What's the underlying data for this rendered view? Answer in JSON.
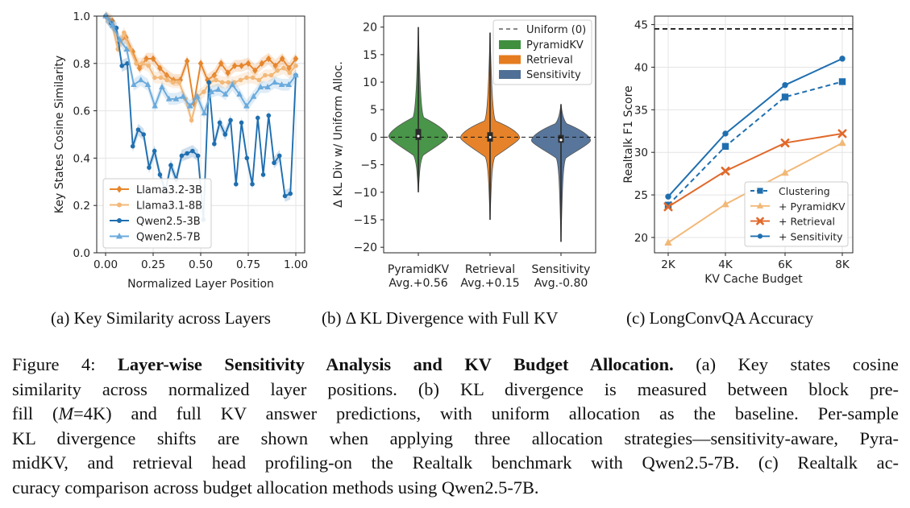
{
  "chart_data": [
    {
      "type": "line",
      "xlabel": "Normalized Layer Position",
      "ylabel": "Key States Cosine Similarity",
      "xlim": [
        0,
        1
      ],
      "ylim": [
        0,
        1
      ],
      "xticks": [
        "0.00",
        "0.25",
        "0.50",
        "0.75",
        "1.00"
      ],
      "yticks": [
        "0.0",
        "0.2",
        "0.4",
        "0.6",
        "0.8",
        "1.0"
      ],
      "grid": true,
      "legend_position": "lower-left",
      "series": [
        {
          "name": "Llama3.2-3B",
          "color": "#e6862c",
          "marker": "diamond",
          "x": [
            0,
            0.0357,
            0.0714,
            0.1071,
            0.1429,
            0.1786,
            0.2143,
            0.25,
            0.2857,
            0.3214,
            0.3571,
            0.3929,
            0.4286,
            0.4643,
            0.5,
            0.5357,
            0.5714,
            0.6071,
            0.6429,
            0.6786,
            0.7143,
            0.75,
            0.7857,
            0.8214,
            0.8571,
            0.8929,
            0.9286,
            0.9643,
            1.0
          ],
          "y": [
            1.0,
            0.98,
            0.89,
            0.91,
            0.85,
            0.78,
            0.82,
            0.82,
            0.78,
            0.75,
            0.73,
            0.73,
            0.81,
            0.63,
            0.8,
            0.73,
            0.75,
            0.8,
            0.76,
            0.79,
            0.79,
            0.8,
            0.77,
            0.8,
            0.82,
            0.79,
            0.82,
            0.78,
            0.82
          ]
        },
        {
          "name": "Llama3.1-8B",
          "color": "#f2b878",
          "marker": "circle",
          "x": [
            0,
            0.0323,
            0.0645,
            0.0968,
            0.129,
            0.1613,
            0.1935,
            0.2258,
            0.2581,
            0.2903,
            0.3226,
            0.3548,
            0.3871,
            0.4194,
            0.4516,
            0.4839,
            0.5161,
            0.5484,
            0.5806,
            0.6129,
            0.6452,
            0.6774,
            0.7097,
            0.7419,
            0.7742,
            0.8065,
            0.8387,
            0.871,
            0.9032,
            0.9355,
            0.9677,
            1.0
          ],
          "y": [
            1.0,
            0.97,
            0.86,
            0.93,
            0.86,
            0.8,
            0.8,
            0.79,
            0.74,
            0.74,
            0.73,
            0.72,
            0.72,
            0.65,
            0.56,
            0.66,
            0.68,
            0.72,
            0.73,
            0.72,
            0.72,
            0.72,
            0.73,
            0.74,
            0.74,
            0.73,
            0.75,
            0.75,
            0.77,
            0.78,
            0.76,
            0.79
          ]
        },
        {
          "name": "Qwen2.5-3B",
          "color": "#1f6fb0",
          "marker": "circle",
          "x": [
            0,
            0.0286,
            0.0571,
            0.0857,
            0.1143,
            0.1429,
            0.1714,
            0.2,
            0.2286,
            0.2571,
            0.2857,
            0.3143,
            0.3429,
            0.3714,
            0.4,
            0.4286,
            0.4571,
            0.4857,
            0.5143,
            0.5429,
            0.5714,
            0.6,
            0.6286,
            0.6571,
            0.6857,
            0.7143,
            0.7429,
            0.7714,
            0.8,
            0.8286,
            0.8571,
            0.8857,
            0.9143,
            0.9429,
            0.9714,
            1.0
          ],
          "y": [
            1.0,
            0.97,
            0.95,
            0.79,
            0.8,
            0.45,
            0.52,
            0.5,
            0.36,
            0.43,
            0.33,
            0.26,
            0.37,
            0.31,
            0.41,
            0.42,
            0.43,
            0.41,
            0.14,
            0.72,
            0.46,
            0.55,
            0.5,
            0.56,
            0.29,
            0.55,
            0.4,
            0.29,
            0.57,
            0.33,
            0.58,
            0.38,
            0.41,
            0.24,
            0.25,
            0.75
          ]
        },
        {
          "name": "Qwen2.5-7B",
          "color": "#6aaadc",
          "marker": "triangle",
          "x": [
            0,
            0.037,
            0.0741,
            0.1111,
            0.1481,
            0.1852,
            0.2222,
            0.2593,
            0.2963,
            0.3333,
            0.3704,
            0.4074,
            0.4444,
            0.4815,
            0.5185,
            0.5556,
            0.5926,
            0.6296,
            0.6667,
            0.7037,
            0.7407,
            0.7778,
            0.8148,
            0.8519,
            0.8889,
            0.9259,
            0.963,
            1.0
          ],
          "y": [
            1.0,
            0.96,
            0.9,
            0.86,
            0.71,
            0.73,
            0.71,
            0.62,
            0.7,
            0.65,
            0.65,
            0.66,
            0.62,
            0.66,
            0.59,
            0.68,
            0.69,
            0.67,
            0.71,
            0.67,
            0.62,
            0.66,
            0.7,
            0.7,
            0.72,
            0.71,
            0.71,
            0.75
          ]
        }
      ]
    },
    {
      "type": "violin",
      "ylabel": "Δ KL Div w/ Uniform Alloc.",
      "ylim": [
        -21,
        22
      ],
      "yticks": [
        "20",
        "15",
        "10",
        "5",
        "0",
        "−5",
        "−10",
        "−15",
        "−20"
      ],
      "legend_position": "top-right",
      "categories": [
        "PyramidKV",
        "Retrieval",
        "Sensitivity"
      ],
      "category_sublabels": [
        "Avg.+0.56",
        "Avg.+0.15",
        "Avg.-0.80"
      ],
      "reference_line": {
        "name": "Uniform (0)",
        "value": 0
      },
      "series": [
        {
          "name": "PyramidKV",
          "color": "#3f8f3f",
          "min": -10,
          "max": 20,
          "q1": -0.5,
          "median": 0.2,
          "q3": 1.5,
          "mean": 0.56
        },
        {
          "name": "Retrieval",
          "color": "#e57c1f",
          "min": -15,
          "max": 19,
          "q1": -0.8,
          "median": 0.0,
          "q3": 0.9,
          "mean": 0.15
        },
        {
          "name": "Sensitivity",
          "color": "#4f6f96",
          "min": -19,
          "max": 6,
          "q1": -1.0,
          "median": -0.5,
          "q3": 0.4,
          "mean": -0.8
        }
      ]
    },
    {
      "type": "line",
      "xlabel": "KV Cache Budget",
      "ylabel": "Realtalk F1 Score",
      "categories": [
        "2K",
        "4K",
        "6K",
        "8K"
      ],
      "yticks": [
        "20",
        "25",
        "30",
        "35",
        "40",
        "45"
      ],
      "ylim": [
        18.2,
        46
      ],
      "grid": true,
      "legend_position": "lower-right",
      "reference_line": {
        "value": 44.5,
        "style": "dashed",
        "color": "#111111"
      },
      "series": [
        {
          "name": "Clustering",
          "color": "#1f6fb0",
          "marker": "square",
          "dashed": true,
          "values": [
            23.8,
            30.7,
            36.5,
            38.3
          ]
        },
        {
          "name": "+ PyramidKV",
          "color": "#f2b878",
          "marker": "triangle",
          "values": [
            19.4,
            23.9,
            27.6,
            31.1
          ]
        },
        {
          "name": "+ Retrieval",
          "color": "#e0692a",
          "marker": "x",
          "values": [
            23.6,
            27.8,
            31.1,
            32.2
          ]
        },
        {
          "name": "+ Sensitivity",
          "color": "#1f6fb0",
          "marker": "circle",
          "values": [
            24.8,
            32.2,
            37.9,
            41.0
          ]
        }
      ]
    }
  ],
  "subcaptions": {
    "a": "(a) Key Similarity across Layers",
    "b": "(b) Δ KL Divergence with Full KV",
    "c": "(c) LongConvQA Accuracy"
  },
  "caption": {
    "l1_pre": "Figure 4: ",
    "l1_bold": "Layer-wise Sensitivity Analysis and KV Budget Allocation.",
    "l1_post": " (a) Key states cosine",
    "l2": "similarity across normalized layer positions. (b) KL divergence is measured between block pre-",
    "l3_pre": "fill (",
    "l3_m": "M",
    "l3_post": "=4K) and full KV answer predictions, with uniform allocation as the baseline. Per-sample",
    "l4": "KL divergence shifts are shown when applying three allocation strategies—sensitivity-aware, Pyra-",
    "l5": "midKV, and retrieval head profiling-on the Realtalk benchmark with Qwen2.5-7B. (c) Realtalk ac-",
    "l6": "curacy comparison across budget allocation methods using Qwen2.5-7B."
  }
}
